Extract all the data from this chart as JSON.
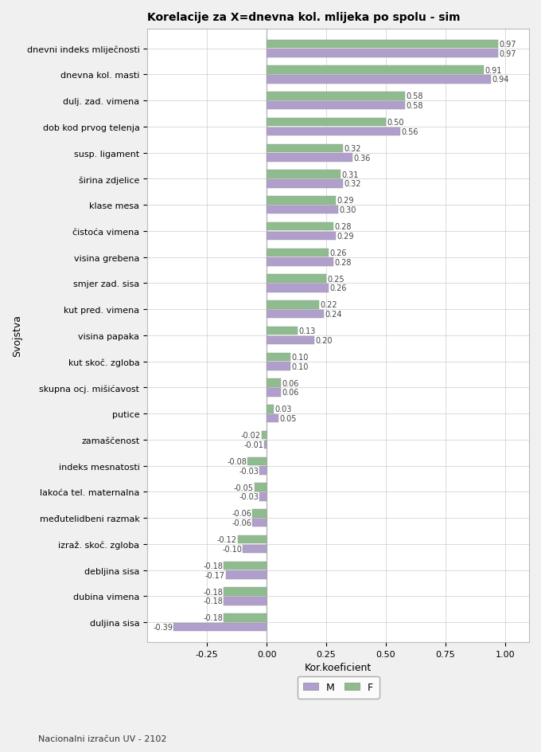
{
  "title": "Korelacije za X=dnevna kol. mlijeka po spolu - sim",
  "xlabel": "Kor.koeficient",
  "ylabel": "Svojstva",
  "footer": "Nacionalni izračun UV - 2102",
  "categories": [
    "dnevni indeks mliječnosti",
    "dnevna kol. masti",
    "dulj. zad. vimena",
    "dob kod prvog telenja",
    "susp. ligament",
    "širina zdjelice",
    "klase mesa",
    "čistоća vimena",
    "visina grebena",
    "smjer zad. sisa",
    "kut pred. vimena",
    "visina papaka",
    "kut skoč. zgloba",
    "skupna ocj. mišićavost",
    "putice",
    "zamaščenost",
    "indeks mesnatosti",
    "lakoća tel. maternalna",
    "međutelidbeni razmak",
    "izraž. skoč. zgloba",
    "debljina sisa",
    "dubina vimena",
    "duljina sisa"
  ],
  "M_values": [
    0.97,
    0.94,
    0.58,
    0.56,
    0.36,
    0.32,
    0.3,
    0.29,
    0.28,
    0.26,
    0.24,
    0.2,
    0.1,
    0.06,
    0.05,
    -0.01,
    -0.03,
    -0.03,
    -0.06,
    -0.1,
    -0.17,
    -0.18,
    -0.39
  ],
  "F_values": [
    0.97,
    0.91,
    0.58,
    0.5,
    0.32,
    0.31,
    0.29,
    0.28,
    0.26,
    0.25,
    0.22,
    0.13,
    0.1,
    0.06,
    0.03,
    -0.02,
    -0.08,
    -0.05,
    -0.06,
    -0.12,
    -0.18,
    -0.18,
    -0.18
  ],
  "color_M": "#b09fcc",
  "color_F": "#8fbc8f",
  "background_color": "#f0f0f0",
  "plot_background": "#ffffff",
  "xlim": [
    -0.5,
    1.1
  ],
  "xticks": [
    -0.25,
    0.0,
    0.25,
    0.5,
    0.75,
    1.0
  ],
  "bar_height": 0.32,
  "bar_gap": 0.04,
  "title_fontsize": 10,
  "axis_fontsize": 9,
  "tick_fontsize": 8,
  "value_fontsize": 7
}
